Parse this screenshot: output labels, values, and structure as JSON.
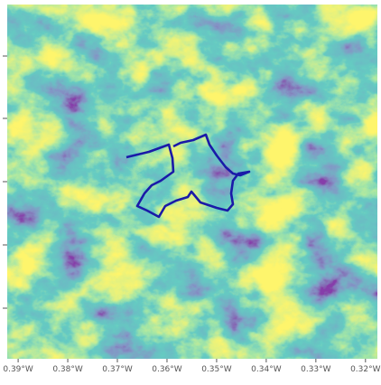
{
  "map": {
    "xlim": [
      -0.3922,
      -0.3176
    ],
    "xticks": [
      {
        "value": -0.39,
        "label": "0.39°W"
      },
      {
        "value": -0.38,
        "label": "0.38°W"
      },
      {
        "value": -0.37,
        "label": "0.37°W"
      },
      {
        "value": -0.36,
        "label": "0.36°W"
      },
      {
        "value": -0.35,
        "label": "0.35°W"
      },
      {
        "value": -0.34,
        "label": "0.34°W"
      },
      {
        "value": -0.33,
        "label": "0.33°W"
      },
      {
        "value": -0.32,
        "label": "0.32°W"
      }
    ]
  }
}
